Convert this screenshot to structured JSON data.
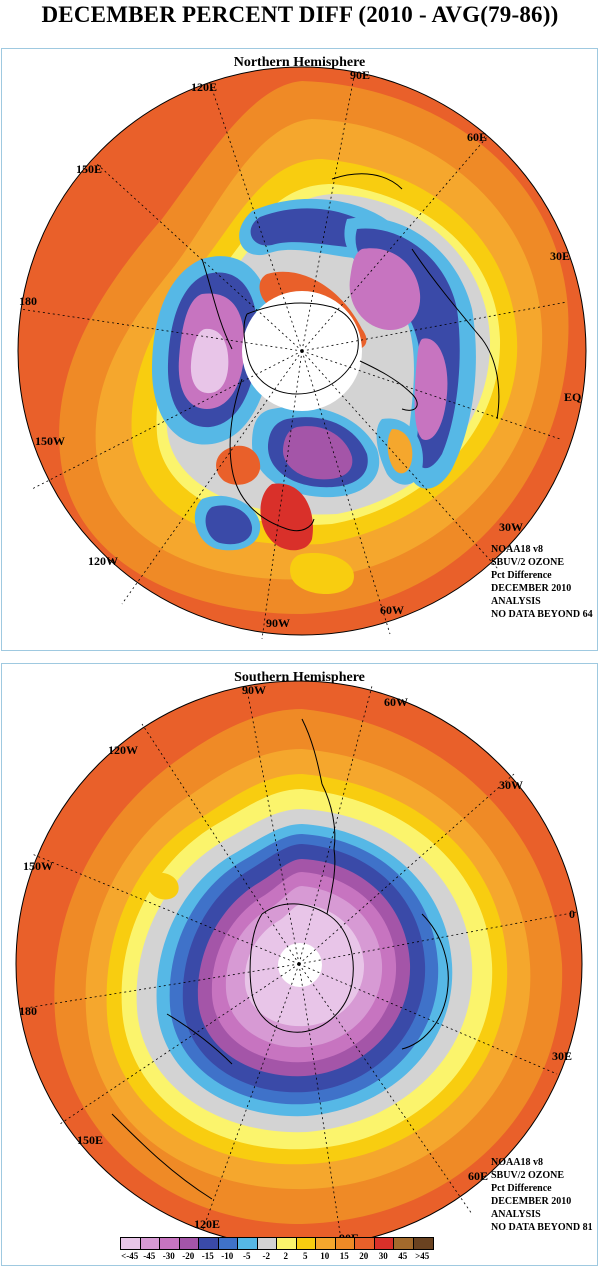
{
  "title": "DECEMBER PERCENT DIFF (2010 - AVG(79-86))",
  "north": {
    "title": "Northern Hemisphere",
    "lon_labels": [
      "90E",
      "60E",
      "30E",
      "EQ",
      "30W",
      "60W",
      "90W",
      "120W",
      "150W",
      "180",
      "150E",
      "120E"
    ],
    "info": [
      "NOAA18 v8",
      "SBUV/2 OZONE",
      "Pct Difference",
      "DECEMBER 2010",
      "ANALYSIS",
      "NO DATA BEYOND  64"
    ]
  },
  "south": {
    "title": "Southern Hemisphere",
    "lon_labels": [
      "90W",
      "60W",
      "30W",
      "0",
      "30E",
      "60E",
      "90E",
      "120E",
      "150E",
      "180",
      "150W",
      "120W"
    ],
    "info": [
      "NOAA18 v8",
      "SBUV/2 OZONE",
      "Pct Difference",
      "DECEMBER 2010",
      "ANALYSIS",
      "NO DATA BEYOND  81"
    ]
  },
  "legend": {
    "labels": [
      "<-45",
      "-45",
      "-30",
      "-20",
      "-15",
      "-10",
      "-5",
      "-2",
      "2",
      "5",
      "10",
      "15",
      "20",
      "30",
      "45",
      ">45"
    ],
    "colors": [
      "#e8c5e8",
      "#d79ad4",
      "#c774c0",
      "#a455a8",
      "#3a4aa8",
      "#3f72c9",
      "#56b8e6",
      "#d3d3d3",
      "#fbf46c",
      "#f8cd10",
      "#f5a72d",
      "#ef8a26",
      "#e9602a",
      "#d9302a",
      "#a36a2c",
      "#6a4220"
    ]
  }
}
